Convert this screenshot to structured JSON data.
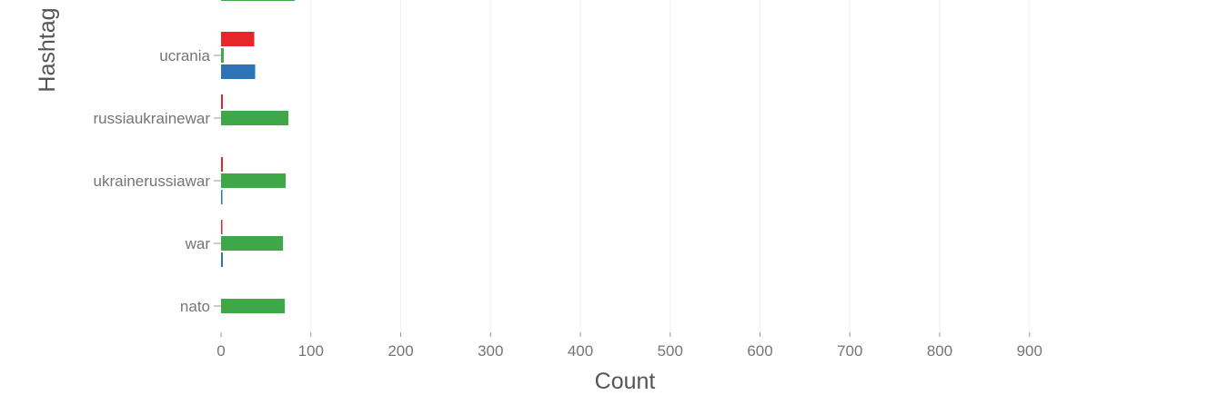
{
  "chart_data": {
    "type": "bar",
    "orientation": "horizontal",
    "xlabel": "Count",
    "ylabel": "Hashtag",
    "xlim": [
      0,
      1000
    ],
    "x_ticks": [
      "0",
      "100",
      "200",
      "300",
      "400",
      "500",
      "600",
      "700",
      "800",
      "900"
    ],
    "grid": "vertical gridlines",
    "categories": [
      "ucrania",
      "russiaukrainewar",
      "ukrainerussiawar",
      "war",
      "nato"
    ],
    "series": [
      {
        "color": "#e8262a",
        "values": [
          37,
          2,
          2,
          1,
          0
        ]
      },
      {
        "color": "#3ea849",
        "values": [
          3,
          75,
          72,
          69,
          71
        ]
      },
      {
        "color": "#2c74b5",
        "values": [
          38,
          0,
          1,
          2,
          0
        ]
      }
    ],
    "partial_bar_top": {
      "color": "#3ea849",
      "value": 82
    }
  }
}
